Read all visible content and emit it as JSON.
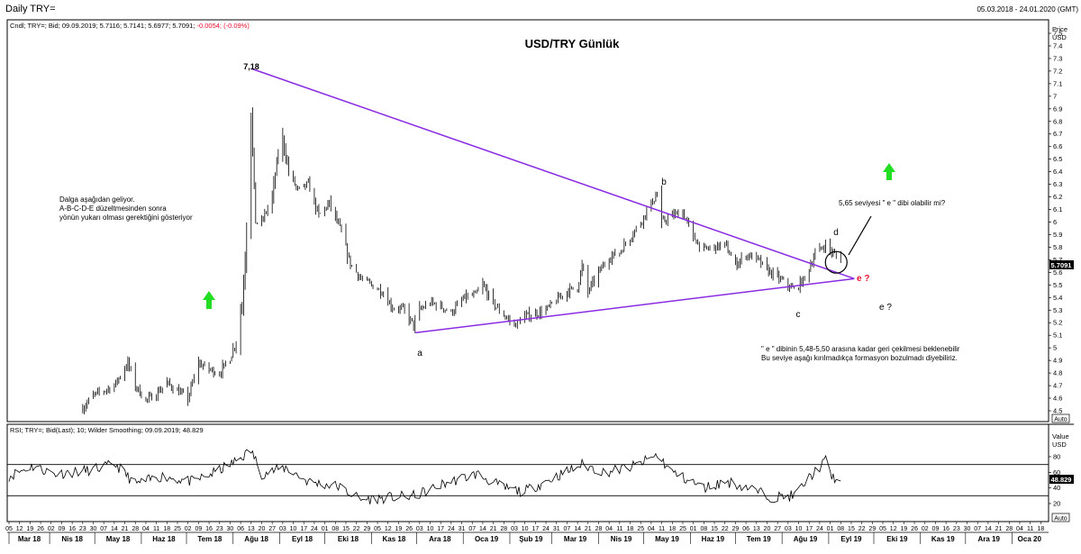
{
  "header": {
    "title": "Daily TRY=",
    "date_range": "05.03.2018 - 24.01.2020 (GMT)"
  },
  "price_panel": {
    "info_prefix": "Cndl; TRY=; Bid; 09.09.2019; 5.7116; 5.7141; 5.6977; 5.7091;",
    "info_change": "-0.0054; (-0.09%)",
    "axis_title": "Price",
    "axis_unit": "USD",
    "last_value": "5.7091",
    "auto_label": "Auto"
  },
  "rsi_panel": {
    "info": "RSI; TRY=; Bid(Last); 10; Wilder Smoothing; 09.09.2019; 48.829",
    "axis_title": "Value",
    "axis_unit": "USD",
    "last_value": "48.829",
    "auto_label": "Auto"
  },
  "annotations": {
    "chart_title": "USD/TRY Günlük",
    "peak_label": "7,18",
    "wave_a": "a",
    "wave_b": "b",
    "wave_c": "c",
    "wave_d": "d",
    "wave_e_red": "e ?",
    "wave_e": "e ?",
    "note_left": [
      "Dalga aşağıdan geliyor.",
      "A-B-C-D-E düzeltmesinden sonra",
      "yönün yukarı olması gerektiğini gösteriyor"
    ],
    "note_question": "5,65 seviyesi \" e \" dibi olabilir mi?",
    "note_bottom": [
      "\" e \"  dibinin 5,48-5,50 arasına kadar geri çekilmesi beklenebilir",
      "Bu seviye aşağı kırılmadıkça formasyon bozulmadı diyebiliriz."
    ]
  },
  "colors": {
    "triangle": "#8a2be2",
    "arrow": "#22dd22",
    "red_text": "#e8112d",
    "price": "#000000"
  },
  "chart_data": [
    {
      "type": "candlestick",
      "title": "USD/TRY Günlük",
      "ylabel": "Price USD",
      "ylim": [
        4.4,
        7.6
      ],
      "yticks": [
        4.5,
        4.6,
        4.7,
        4.8,
        4.9,
        5,
        5.1,
        5.2,
        5.3,
        5.4,
        5.5,
        5.6,
        5.7,
        5.8,
        5.9,
        6,
        6.1,
        6.2,
        6.3,
        6.4,
        6.5,
        6.6,
        6.7,
        6.8,
        6.9,
        7,
        7.1,
        7.2,
        7.3,
        7.4,
        7.5
      ],
      "ytick_labels": [
        "4.5",
        "4.6",
        "4.7",
        "4.8",
        "4.9",
        "5",
        "5.1",
        "5.2",
        "5.3",
        "5.4",
        "5.5",
        "5.6",
        "5.7",
        "5.8",
        "5.9",
        "6",
        "6.1",
        "6.2",
        "6.3",
        "6.4",
        "6.5",
        "6.6",
        "6.7",
        "6.8",
        "6.9",
        "7",
        "7.1",
        "7.2",
        "7.3",
        "7.4",
        "7.5"
      ],
      "day_ticks": [
        "05",
        "12",
        "19",
        "26",
        "02",
        "09",
        "16",
        "23",
        "30",
        "07",
        "14",
        "21",
        "28",
        "04",
        "11",
        "18",
        "25",
        "02",
        "09",
        "16",
        "23",
        "30",
        "06",
        "13",
        "20",
        "27",
        "03",
        "10",
        "17",
        "24",
        "01",
        "08",
        "15",
        "22",
        "29",
        "05",
        "12",
        "19",
        "26",
        "03",
        "10",
        "17",
        "24",
        "31",
        "07",
        "14",
        "21",
        "28",
        "03",
        "10",
        "17",
        "24",
        "31",
        "07",
        "14",
        "21",
        "28",
        "04",
        "11",
        "18",
        "25",
        "04",
        "11",
        "18",
        "25",
        "01",
        "08",
        "15",
        "22",
        "29",
        "06",
        "13",
        "20",
        "27",
        "03",
        "10",
        "17",
        "24",
        "01",
        "08",
        "15",
        "22",
        "29",
        "05",
        "12",
        "19",
        "26",
        "02",
        "09",
        "16",
        "23",
        "30",
        "07",
        "14",
        "21",
        "28",
        "04",
        "11",
        "18",
        "25",
        "02",
        "09",
        "16",
        "23",
        "30",
        "06",
        "13",
        "20"
      ],
      "month_labels": [
        "Mar 18",
        "Nis 18",
        "May 18",
        "Haz 18",
        "Tem 18",
        "Ağu 18",
        "Eyl 18",
        "Eki 18",
        "Kas 18",
        "Ara 18",
        "Oca 19",
        "Şub 19",
        "Mar 19",
        "Nis 19",
        "May 19",
        "Haz 19",
        "Tem 19",
        "Ağu 19",
        "Eyl 19",
        "Eki 19",
        "Kas 19",
        "Ara 19",
        "Oca 20"
      ],
      "x_start": "2018-03-05",
      "x_end": "2020-01-24",
      "last_close": 5.7091,
      "close_anchors": [
        [
          "2018-04-23",
          4.52
        ],
        [
          "2018-04-30",
          4.62
        ],
        [
          "2018-05-07",
          4.66
        ],
        [
          "2018-05-14",
          4.7
        ],
        [
          "2018-05-23",
          4.88
        ],
        [
          "2018-05-28",
          4.7
        ],
        [
          "2018-06-04",
          4.58
        ],
        [
          "2018-06-11",
          4.64
        ],
        [
          "2018-06-18",
          4.72
        ],
        [
          "2018-06-25",
          4.66
        ],
        [
          "2018-07-02",
          4.6
        ],
        [
          "2018-07-09",
          4.88
        ],
        [
          "2018-07-16",
          4.83
        ],
        [
          "2018-07-23",
          4.8
        ],
        [
          "2018-07-30",
          4.92
        ],
        [
          "2018-08-03",
          5.05
        ],
        [
          "2018-08-07",
          5.35
        ],
        [
          "2018-08-09",
          5.7
        ],
        [
          "2018-08-13",
          6.86
        ],
        [
          "2018-08-16",
          6.0
        ],
        [
          "2018-08-20",
          6.0
        ],
        [
          "2018-08-27",
          6.2
        ],
        [
          "2018-08-31",
          6.55
        ],
        [
          "2018-09-03",
          6.66
        ],
        [
          "2018-09-07",
          6.4
        ],
        [
          "2018-09-13",
          6.25
        ],
        [
          "2018-09-20",
          6.3
        ],
        [
          "2018-09-27",
          6.05
        ],
        [
          "2018-10-04",
          6.15
        ],
        [
          "2018-10-11",
          5.95
        ],
        [
          "2018-10-18",
          5.67
        ],
        [
          "2018-10-25",
          5.55
        ],
        [
          "2018-11-01",
          5.5
        ],
        [
          "2018-11-08",
          5.45
        ],
        [
          "2018-11-15",
          5.32
        ],
        [
          "2018-11-22",
          5.31
        ],
        [
          "2018-11-29",
          5.18
        ],
        [
          "2018-12-03",
          5.3
        ],
        [
          "2018-12-10",
          5.36
        ],
        [
          "2018-12-17",
          5.33
        ],
        [
          "2018-12-24",
          5.28
        ],
        [
          "2019-01-02",
          5.4
        ],
        [
          "2019-01-09",
          5.42
        ],
        [
          "2019-01-14",
          5.5
        ],
        [
          "2019-01-21",
          5.35
        ],
        [
          "2019-01-28",
          5.26
        ],
        [
          "2019-02-04",
          5.18
        ],
        [
          "2019-02-11",
          5.25
        ],
        [
          "2019-02-18",
          5.27
        ],
        [
          "2019-02-25",
          5.3
        ],
        [
          "2019-03-04",
          5.38
        ],
        [
          "2019-03-11",
          5.45
        ],
        [
          "2019-03-18",
          5.48
        ],
        [
          "2019-03-21",
          5.65
        ],
        [
          "2019-03-25",
          5.45
        ],
        [
          "2019-04-01",
          5.6
        ],
        [
          "2019-04-08",
          5.72
        ],
        [
          "2019-04-15",
          5.76
        ],
        [
          "2019-04-22",
          5.88
        ],
        [
          "2019-04-29",
          6.0
        ],
        [
          "2019-05-06",
          6.15
        ],
        [
          "2019-05-10",
          6.22
        ],
        [
          "2019-05-13",
          6.0
        ],
        [
          "2019-05-20",
          6.05
        ],
        [
          "2019-05-27",
          6.08
        ],
        [
          "2019-06-03",
          5.88
        ],
        [
          "2019-06-10",
          5.78
        ],
        [
          "2019-06-17",
          5.8
        ],
        [
          "2019-06-24",
          5.82
        ],
        [
          "2019-07-01",
          5.66
        ],
        [
          "2019-07-08",
          5.74
        ],
        [
          "2019-07-15",
          5.71
        ],
        [
          "2019-07-22",
          5.62
        ],
        [
          "2019-07-29",
          5.56
        ],
        [
          "2019-08-05",
          5.5
        ],
        [
          "2019-08-09",
          5.46
        ],
        [
          "2019-08-16",
          5.55
        ],
        [
          "2019-08-23",
          5.75
        ],
        [
          "2019-08-30",
          5.82
        ],
        [
          "2019-09-03",
          5.76
        ],
        [
          "2019-09-09",
          5.7091
        ]
      ],
      "triangle": {
        "upper_line": [
          [
            "2018-08-13",
            7.22
          ],
          [
            "2019-09-18",
            5.55
          ]
        ],
        "lower_line": [
          [
            "2018-11-30",
            5.12
          ],
          [
            "2019-09-18",
            5.55
          ]
        ]
      },
      "circle_at": [
        "2019-09-06",
        5.68
      ]
    },
    {
      "type": "line",
      "title": "RSI",
      "ylim": [
        10,
        100
      ],
      "yticks": [
        20,
        40,
        60,
        80
      ],
      "ytick_labels": [
        "20",
        "40",
        "60",
        "80"
      ],
      "reference_lines": [
        30,
        70
      ],
      "last_value": 48.829,
      "anchors": [
        [
          "2018-03-05",
          55
        ],
        [
          "2018-03-20",
          68
        ],
        [
          "2018-04-05",
          58
        ],
        [
          "2018-04-25",
          62
        ],
        [
          "2018-05-15",
          70
        ],
        [
          "2018-05-28",
          45
        ],
        [
          "2018-06-15",
          55
        ],
        [
          "2018-07-05",
          48
        ],
        [
          "2018-07-20",
          60
        ],
        [
          "2018-08-01",
          72
        ],
        [
          "2018-08-13",
          88
        ],
        [
          "2018-08-20",
          58
        ],
        [
          "2018-09-05",
          66
        ],
        [
          "2018-09-20",
          48
        ],
        [
          "2018-10-10",
          42
        ],
        [
          "2018-10-25",
          25
        ],
        [
          "2018-11-15",
          28
        ],
        [
          "2018-11-30",
          30
        ],
        [
          "2018-12-20",
          46
        ],
        [
          "2019-01-10",
          58
        ],
        [
          "2019-01-28",
          40
        ],
        [
          "2019-02-10",
          35
        ],
        [
          "2019-03-01",
          52
        ],
        [
          "2019-03-21",
          70
        ],
        [
          "2019-04-05",
          60
        ],
        [
          "2019-04-25",
          68
        ],
        [
          "2019-05-10",
          82
        ],
        [
          "2019-05-20",
          60
        ],
        [
          "2019-06-10",
          40
        ],
        [
          "2019-06-25",
          48
        ],
        [
          "2019-07-10",
          40
        ],
        [
          "2019-07-25",
          28
        ],
        [
          "2019-08-09",
          30
        ],
        [
          "2019-08-20",
          55
        ],
        [
          "2019-08-30",
          75
        ],
        [
          "2019-09-03",
          55
        ],
        [
          "2019-09-09",
          48.829
        ]
      ]
    }
  ]
}
